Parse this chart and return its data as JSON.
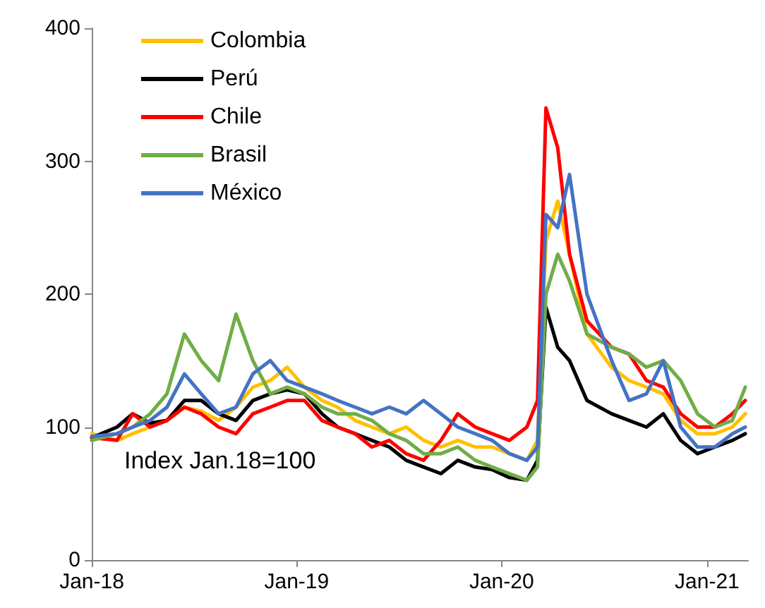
{
  "chart_data": {
    "type": "line",
    "x": [
      "2018-01-01",
      "2018-02-15",
      "2018-03-15",
      "2018-04-15",
      "2018-05-15",
      "2018-06-15",
      "2018-07-15",
      "2018-08-15",
      "2018-09-15",
      "2018-10-15",
      "2018-11-15",
      "2018-12-15",
      "2019-01-15",
      "2019-02-15",
      "2019-03-15",
      "2019-04-15",
      "2019-05-15",
      "2019-06-15",
      "2019-07-15",
      "2019-08-15",
      "2019-09-15",
      "2019-10-15",
      "2019-11-15",
      "2019-12-15",
      "2020-01-15",
      "2020-02-15",
      "2020-03-05",
      "2020-03-20",
      "2020-04-10",
      "2020-05-01",
      "2020-06-01",
      "2020-07-15",
      "2020-08-15",
      "2020-09-15",
      "2020-10-15",
      "2020-11-15",
      "2020-12-15",
      "2021-01-15",
      "2021-02-15",
      "2021-03-10"
    ],
    "series": [
      {
        "name": "Colombia",
        "color": "#ffc000",
        "values": [
          95,
          90,
          95,
          100,
          105,
          115,
          112,
          105,
          115,
          130,
          135,
          145,
          130,
          120,
          115,
          105,
          100,
          95,
          100,
          90,
          85,
          90,
          85,
          85,
          80,
          75,
          90,
          240,
          270,
          230,
          170,
          145,
          135,
          130,
          125,
          105,
          95,
          95,
          100,
          110
        ]
      },
      {
        "name": "Perú",
        "color": "#000000",
        "values": [
          92,
          100,
          110,
          103,
          105,
          120,
          120,
          110,
          105,
          120,
          125,
          128,
          125,
          110,
          100,
          95,
          90,
          85,
          75,
          70,
          65,
          75,
          70,
          68,
          62,
          60,
          75,
          190,
          160,
          150,
          120,
          110,
          105,
          100,
          110,
          90,
          80,
          85,
          90,
          95
        ]
      },
      {
        "name": "Chile",
        "color": "#ff0000",
        "values": [
          92,
          90,
          110,
          100,
          105,
          115,
          110,
          100,
          95,
          110,
          115,
          120,
          120,
          105,
          100,
          95,
          85,
          90,
          80,
          75,
          90,
          110,
          100,
          95,
          90,
          100,
          120,
          340,
          310,
          230,
          180,
          160,
          155,
          135,
          130,
          110,
          100,
          100,
          110,
          120
        ]
      },
      {
        "name": "Brasil",
        "color": "#70ad47",
        "values": [
          90,
          95,
          100,
          110,
          125,
          170,
          150,
          135,
          185,
          150,
          125,
          130,
          125,
          115,
          110,
          110,
          105,
          95,
          90,
          80,
          80,
          85,
          75,
          70,
          65,
          60,
          70,
          200,
          230,
          210,
          170,
          160,
          155,
          145,
          150,
          135,
          110,
          100,
          105,
          130
        ]
      },
      {
        "name": "México",
        "color": "#4472c4",
        "values": [
          93,
          95,
          100,
          105,
          115,
          140,
          125,
          110,
          115,
          140,
          150,
          135,
          130,
          125,
          120,
          115,
          110,
          115,
          110,
          120,
          110,
          100,
          95,
          90,
          80,
          75,
          85,
          260,
          250,
          290,
          200,
          150,
          120,
          125,
          150,
          100,
          85,
          85,
          95,
          100
        ]
      }
    ],
    "xlim": [
      "2018-01-01",
      "2021-03-15"
    ],
    "xticks": [
      {
        "value": "2018-01-01",
        "label": "Jan-18"
      },
      {
        "value": "2019-01-01",
        "label": "Jan-19"
      },
      {
        "value": "2020-01-01",
        "label": "Jan-20"
      },
      {
        "value": "2021-01-01",
        "label": "Jan-21"
      }
    ],
    "ylim": [
      0,
      400
    ],
    "yticks": [
      0,
      100,
      200,
      300,
      400
    ],
    "annotations": [
      "Index Jan.18=100"
    ],
    "legend": "top left",
    "grid": false,
    "marker": "none",
    "line_style": "solid"
  }
}
